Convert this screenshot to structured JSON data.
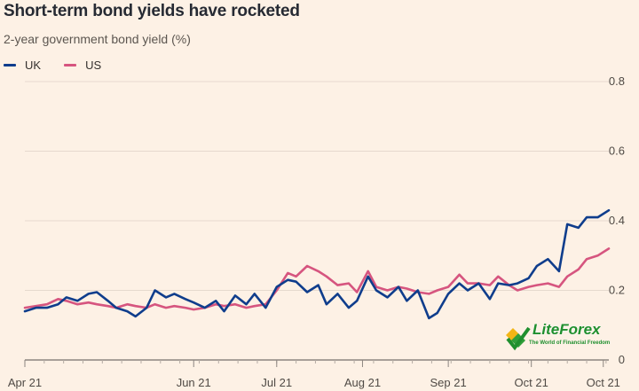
{
  "title": "Short-term bond yields have rocketed",
  "subtitle": "2-year government bond yield (%)",
  "colors": {
    "uk": "#0f3d8c",
    "us": "#d6557f",
    "background": "#fdf1e5"
  },
  "watermark": {
    "name": "LiteForex",
    "tagline": "The World of Financial Freedom",
    "icon": "liteforex-logo-icon"
  },
  "chart_data": {
    "type": "line",
    "title": "Short-term bond yields have rocketed",
    "subtitle": "2-year government bond yield (%)",
    "x_axis": {
      "type": "date",
      "ticks": [
        {
          "date": "2021-04-01",
          "label": "Apr 21"
        },
        {
          "date": "2021-06-01",
          "label": "Jun 21"
        },
        {
          "date": "2021-07-01",
          "label": "Jul 21"
        },
        {
          "date": "2021-08-01",
          "label": "Aug 21"
        },
        {
          "date": "2021-09-01",
          "label": "Sep 21"
        },
        {
          "date": "2021-10-01",
          "label": "Oct 21"
        },
        {
          "date": "2021-10-27",
          "label": "Oct 21"
        }
      ],
      "range": [
        "2021-04-01",
        "2021-10-29"
      ]
    },
    "y_axis": {
      "min": 0,
      "max": 0.8,
      "ticks": [
        0,
        0.2,
        0.4,
        0.6,
        0.8
      ],
      "position": "right",
      "grid": true
    },
    "legend": {
      "position": "top-left",
      "entries": [
        "UK",
        "US"
      ]
    },
    "series": [
      {
        "name": "UK",
        "points": [
          [
            "2021-04-01",
            0.14
          ],
          [
            "2021-04-05",
            0.15
          ],
          [
            "2021-04-09",
            0.15
          ],
          [
            "2021-04-13",
            0.16
          ],
          [
            "2021-04-16",
            0.18
          ],
          [
            "2021-04-20",
            0.17
          ],
          [
            "2021-04-24",
            0.19
          ],
          [
            "2021-04-27",
            0.195
          ],
          [
            "2021-05-01",
            0.17
          ],
          [
            "2021-05-04",
            0.15
          ],
          [
            "2021-05-08",
            0.14
          ],
          [
            "2021-05-11",
            0.125
          ],
          [
            "2021-05-15",
            0.15
          ],
          [
            "2021-05-18",
            0.2
          ],
          [
            "2021-05-22",
            0.18
          ],
          [
            "2021-05-25",
            0.19
          ],
          [
            "2021-05-29",
            0.175
          ],
          [
            "2021-06-01",
            0.165
          ],
          [
            "2021-06-05",
            0.15
          ],
          [
            "2021-06-09",
            0.17
          ],
          [
            "2021-06-12",
            0.14
          ],
          [
            "2021-06-16",
            0.185
          ],
          [
            "2021-06-20",
            0.16
          ],
          [
            "2021-06-23",
            0.19
          ],
          [
            "2021-06-27",
            0.15
          ],
          [
            "2021-07-01",
            0.21
          ],
          [
            "2021-07-05",
            0.23
          ],
          [
            "2021-07-08",
            0.225
          ],
          [
            "2021-07-12",
            0.195
          ],
          [
            "2021-07-16",
            0.215
          ],
          [
            "2021-07-19",
            0.16
          ],
          [
            "2021-07-23",
            0.19
          ],
          [
            "2021-07-27",
            0.15
          ],
          [
            "2021-07-30",
            0.17
          ],
          [
            "2021-08-03",
            0.24
          ],
          [
            "2021-08-06",
            0.2
          ],
          [
            "2021-08-10",
            0.18
          ],
          [
            "2021-08-14",
            0.21
          ],
          [
            "2021-08-17",
            0.17
          ],
          [
            "2021-08-21",
            0.2
          ],
          [
            "2021-08-25",
            0.12
          ],
          [
            "2021-08-28",
            0.135
          ],
          [
            "2021-09-01",
            0.19
          ],
          [
            "2021-09-05",
            0.22
          ],
          [
            "2021-09-08",
            0.2
          ],
          [
            "2021-09-12",
            0.22
          ],
          [
            "2021-09-16",
            0.175
          ],
          [
            "2021-09-19",
            0.22
          ],
          [
            "2021-09-23",
            0.215
          ],
          [
            "2021-09-26",
            0.22
          ],
          [
            "2021-09-30",
            0.235
          ],
          [
            "2021-10-03",
            0.27
          ],
          [
            "2021-10-07",
            0.29
          ],
          [
            "2021-10-11",
            0.255
          ],
          [
            "2021-10-14",
            0.39
          ],
          [
            "2021-10-18",
            0.38
          ],
          [
            "2021-10-21",
            0.41
          ],
          [
            "2021-10-25",
            0.41
          ],
          [
            "2021-10-29",
            0.43
          ]
        ]
      },
      {
        "name": "US",
        "points": [
          [
            "2021-04-01",
            0.15
          ],
          [
            "2021-04-05",
            0.155
          ],
          [
            "2021-04-09",
            0.16
          ],
          [
            "2021-04-13",
            0.175
          ],
          [
            "2021-04-16",
            0.17
          ],
          [
            "2021-04-20",
            0.16
          ],
          [
            "2021-04-24",
            0.165
          ],
          [
            "2021-04-27",
            0.16
          ],
          [
            "2021-05-01",
            0.155
          ],
          [
            "2021-05-04",
            0.15
          ],
          [
            "2021-05-08",
            0.16
          ],
          [
            "2021-05-11",
            0.155
          ],
          [
            "2021-05-15",
            0.15
          ],
          [
            "2021-05-18",
            0.16
          ],
          [
            "2021-05-22",
            0.15
          ],
          [
            "2021-05-25",
            0.155
          ],
          [
            "2021-05-29",
            0.15
          ],
          [
            "2021-06-01",
            0.145
          ],
          [
            "2021-06-05",
            0.15
          ],
          [
            "2021-06-09",
            0.16
          ],
          [
            "2021-06-12",
            0.155
          ],
          [
            "2021-06-16",
            0.16
          ],
          [
            "2021-06-20",
            0.15
          ],
          [
            "2021-06-23",
            0.155
          ],
          [
            "2021-06-27",
            0.16
          ],
          [
            "2021-07-01",
            0.2
          ],
          [
            "2021-07-05",
            0.25
          ],
          [
            "2021-07-08",
            0.24
          ],
          [
            "2021-07-12",
            0.27
          ],
          [
            "2021-07-16",
            0.255
          ],
          [
            "2021-07-19",
            0.24
          ],
          [
            "2021-07-23",
            0.215
          ],
          [
            "2021-07-27",
            0.22
          ],
          [
            "2021-07-30",
            0.195
          ],
          [
            "2021-08-03",
            0.255
          ],
          [
            "2021-08-06",
            0.21
          ],
          [
            "2021-08-10",
            0.2
          ],
          [
            "2021-08-14",
            0.21
          ],
          [
            "2021-08-17",
            0.205
          ],
          [
            "2021-08-21",
            0.195
          ],
          [
            "2021-08-25",
            0.19
          ],
          [
            "2021-08-28",
            0.2
          ],
          [
            "2021-09-01",
            0.21
          ],
          [
            "2021-09-05",
            0.245
          ],
          [
            "2021-09-08",
            0.22
          ],
          [
            "2021-09-12",
            0.22
          ],
          [
            "2021-09-16",
            0.215
          ],
          [
            "2021-09-19",
            0.24
          ],
          [
            "2021-09-23",
            0.215
          ],
          [
            "2021-09-26",
            0.2
          ],
          [
            "2021-09-30",
            0.21
          ],
          [
            "2021-10-03",
            0.215
          ],
          [
            "2021-10-07",
            0.22
          ],
          [
            "2021-10-11",
            0.21
          ],
          [
            "2021-10-14",
            0.24
          ],
          [
            "2021-10-18",
            0.26
          ],
          [
            "2021-10-21",
            0.29
          ],
          [
            "2021-10-25",
            0.3
          ],
          [
            "2021-10-29",
            0.32
          ]
        ]
      }
    ]
  }
}
